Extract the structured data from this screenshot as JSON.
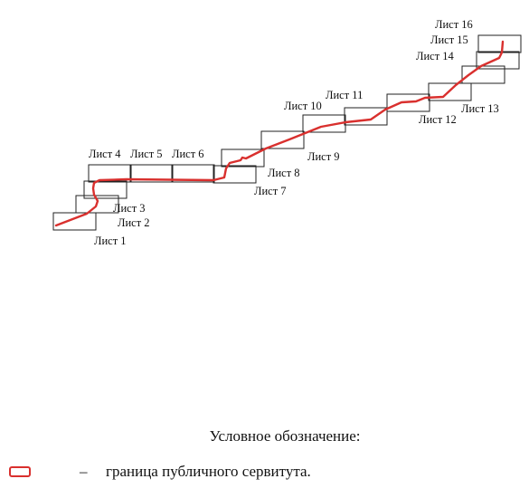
{
  "map": {
    "sheets": [
      {
        "label": "Лист 1"
      },
      {
        "label": "Лист 2"
      },
      {
        "label": "Лист 3"
      },
      {
        "label": "Лист 4"
      },
      {
        "label": "Лист 5"
      },
      {
        "label": "Лист 6"
      },
      {
        "label": "Лист 7"
      },
      {
        "label": "Лист 8"
      },
      {
        "label": "Лист 9"
      },
      {
        "label": "Лист 10"
      },
      {
        "label": "Лист 11"
      },
      {
        "label": "Лист 12"
      },
      {
        "label": "Лист 13"
      },
      {
        "label": "Лист 14"
      },
      {
        "label": "Лист 15"
      },
      {
        "label": "Лист 16"
      }
    ],
    "route_color": "#d9302e"
  },
  "legend": {
    "title": "Условное обозначение:",
    "dash": "–",
    "item_label": "граница публичного сервитута."
  }
}
